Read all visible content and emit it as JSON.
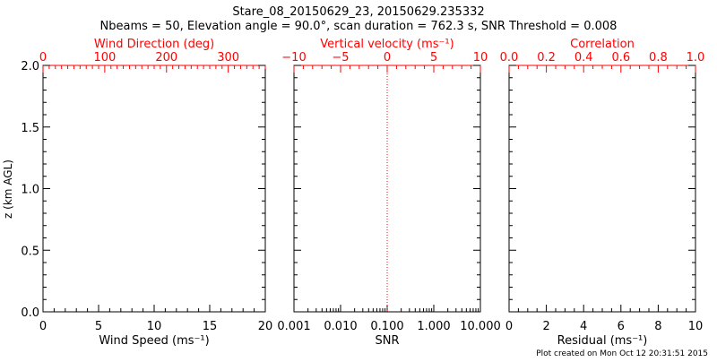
{
  "colors": {
    "axis": "#000000",
    "top_axis": "#ff0000",
    "threshold_line": "#ff0000"
  },
  "chart_data": {
    "type": "line",
    "title": "Stare_08_20150629_23, 20150629.235332",
    "subtitle": "Nbeams = 50, Elevation angle = 90.0°, scan duration = 762.3 s, SNR Threshold = 0.008",
    "footer": "Plot created on Mon Oct 12 20:31:51 2015",
    "ylabel": "z (km AGL)",
    "ylim": [
      0,
      2.0
    ],
    "yticks": [
      "0.0",
      "0.5",
      "1.0",
      "1.5",
      "2.0"
    ],
    "panels": [
      {
        "xlabel": "Wind Speed (ms⁻¹)",
        "xlim": [
          0,
          20
        ],
        "xticks": [
          "0",
          "5",
          "10",
          "15",
          "20"
        ],
        "xscale": "linear",
        "top_label": "Wind Direction (deg)",
        "top_lim": [
          0,
          360
        ],
        "top_ticks": [
          "0",
          "100",
          "200",
          "300"
        ],
        "series": []
      },
      {
        "xlabel": "SNR",
        "xlim": [
          0.001,
          10
        ],
        "xticks": [
          "0.001",
          "0.010",
          "0.100",
          "1.000",
          "10.000"
        ],
        "xscale": "log",
        "top_label": "Vertical velocity (ms⁻¹)",
        "top_lim": [
          -10,
          10
        ],
        "top_ticks": [
          "−10",
          "−5",
          "0",
          "5",
          "10"
        ],
        "reference_line_x_top": 0,
        "series": []
      },
      {
        "xlabel": "Residual (ms⁻¹)",
        "xlim": [
          0,
          10
        ],
        "xticks": [
          "0",
          "2",
          "4",
          "6",
          "8",
          "10"
        ],
        "xscale": "linear",
        "top_label": "Correlation",
        "top_lim": [
          0,
          1.0
        ],
        "top_ticks": [
          "0.0",
          "0.2",
          "0.4",
          "0.6",
          "0.8",
          "1.0"
        ],
        "series": []
      }
    ]
  }
}
